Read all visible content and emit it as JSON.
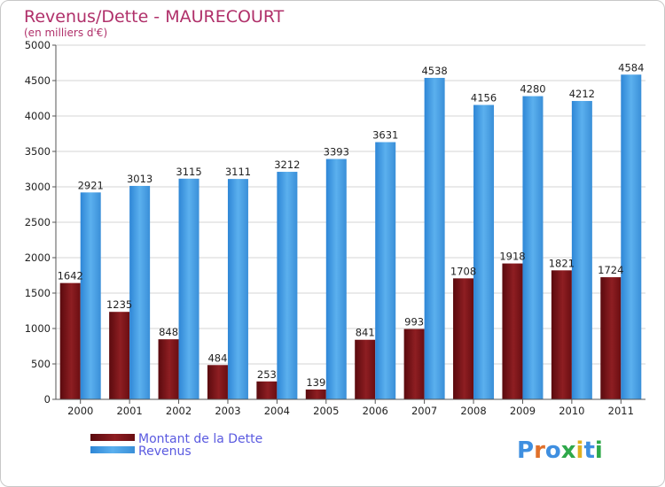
{
  "chart_data": {
    "type": "bar",
    "title": "Revenus/Dette - MAURECOURT",
    "subtitle": "(en milliers d'€)",
    "categories": [
      "2000",
      "2001",
      "2002",
      "2003",
      "2004",
      "2005",
      "2006",
      "2007",
      "2008",
      "2009",
      "2010",
      "2011"
    ],
    "series": [
      {
        "name": "Montant de la Dette",
        "color": "#7a1216",
        "values": [
          1642,
          1235,
          848,
          484,
          253,
          139,
          841,
          993,
          1708,
          1918,
          1821,
          1724
        ],
        "labels": [
          "1642",
          "1235",
          "848",
          "484",
          "253",
          "139",
          "841",
          "993",
          "1708",
          "1918",
          "1821",
          "1724"
        ]
      },
      {
        "name": "Revenus",
        "color": "#3f9ae3",
        "values": [
          2921,
          3013,
          3115,
          3111,
          3212,
          3393,
          3631,
          4538,
          4156,
          4280,
          4212,
          4584
        ],
        "labels": [
          "2921",
          "3013",
          "3115",
          "3111",
          "3212",
          "3393",
          "3631",
          "4538",
          "4156",
          "4280",
          "4212",
          "4584"
        ]
      }
    ],
    "ylim": [
      0,
      5000
    ],
    "yticks": [
      0,
      500,
      1000,
      1500,
      2000,
      2500,
      3000,
      3500,
      4000,
      4500,
      5000
    ],
    "grid": true,
    "legend": "bottom-left"
  },
  "logo": {
    "text": "Proxiti"
  }
}
